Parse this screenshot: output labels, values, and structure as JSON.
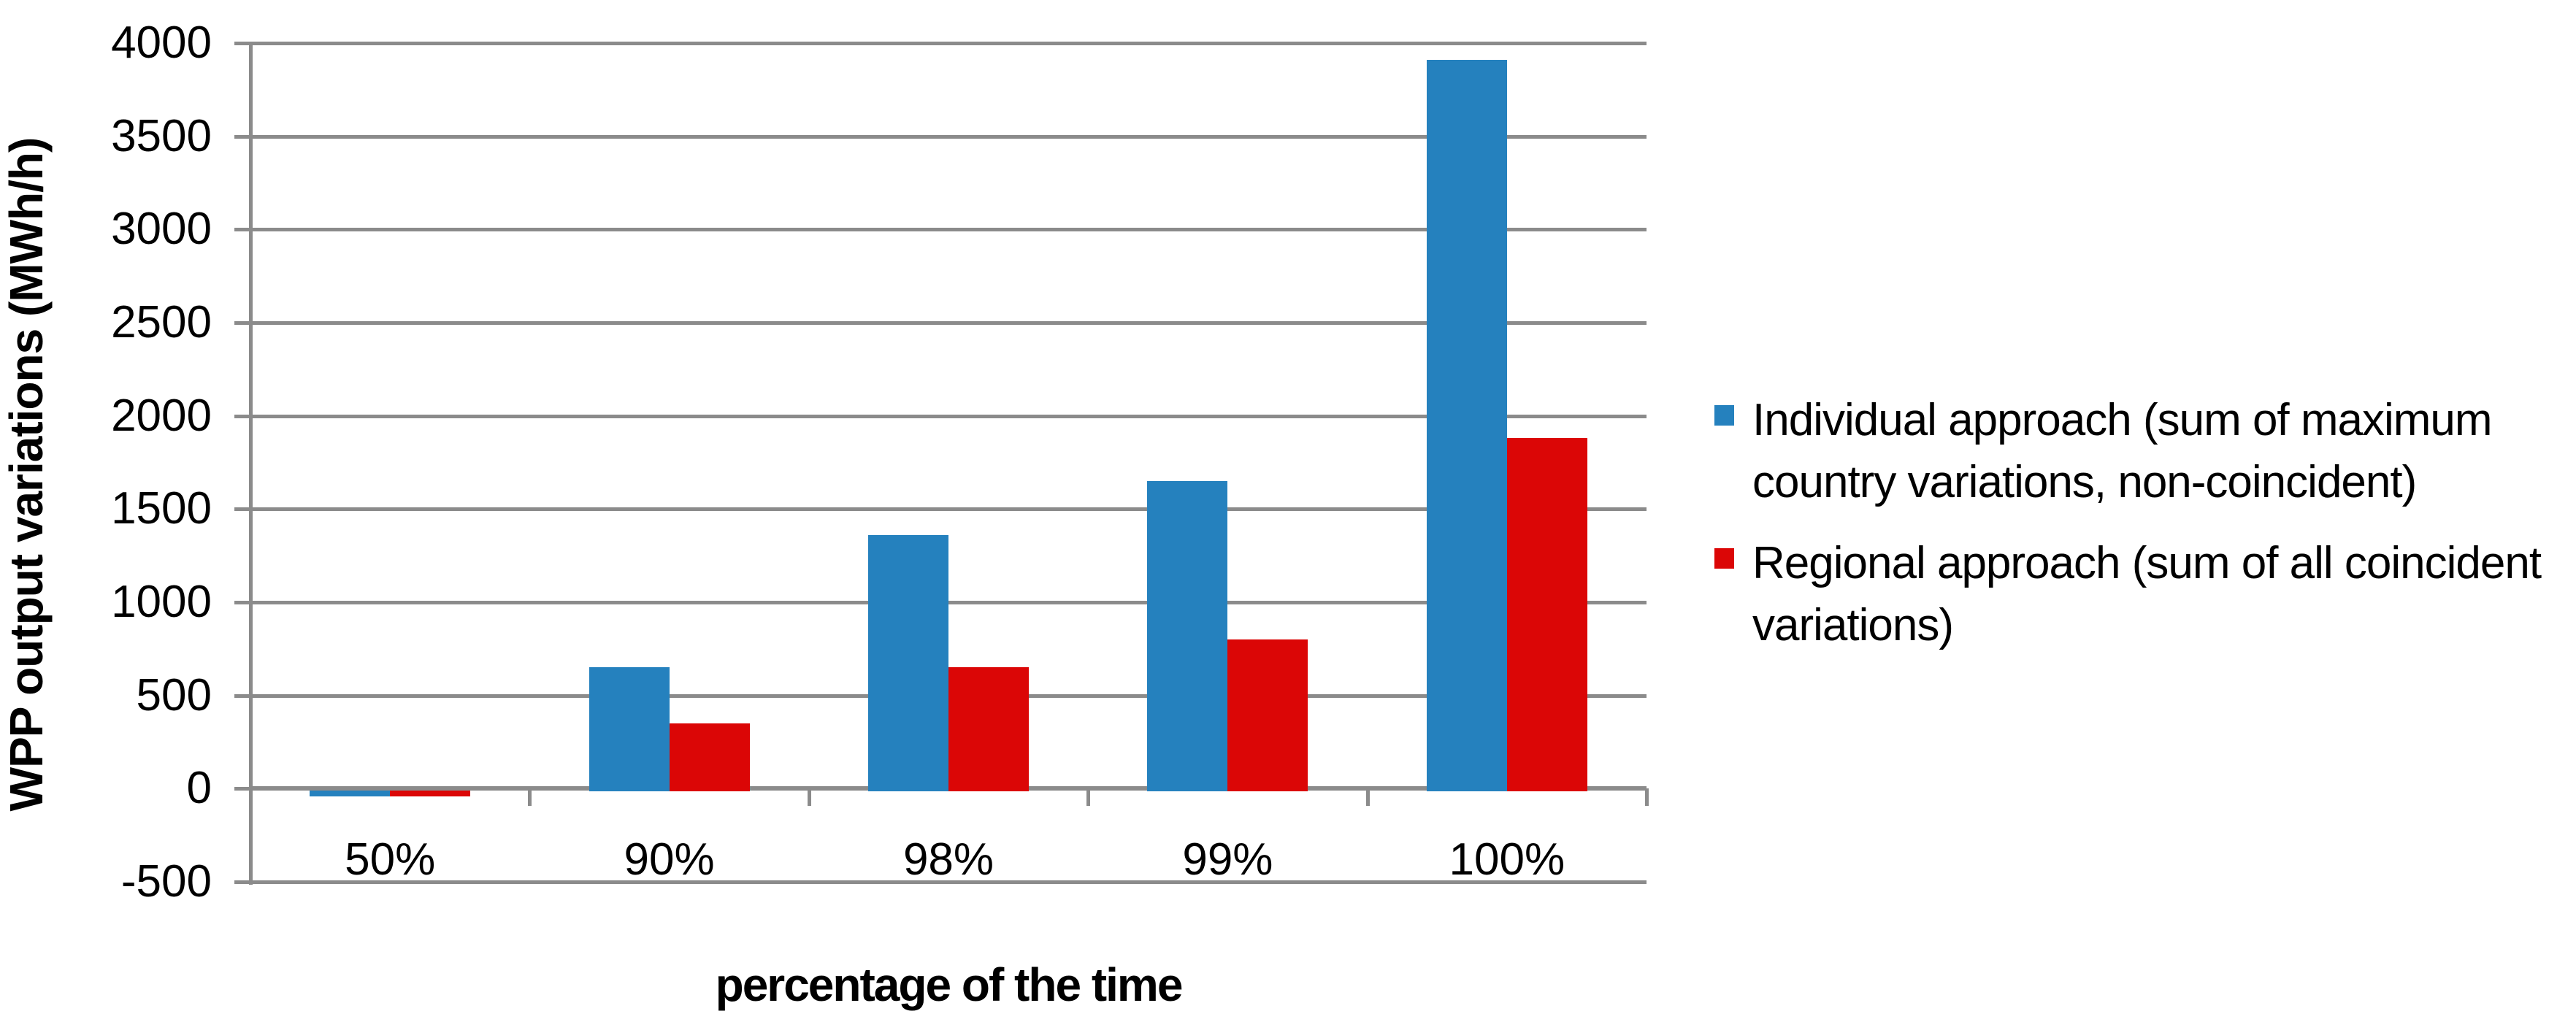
{
  "chart_data": {
    "type": "bar",
    "title": "",
    "categories": [
      "50%",
      "90%",
      "98%",
      "99%",
      "100%"
    ],
    "series": [
      {
        "name": "Individual approach (sum of maximum country variations, non-coincident)",
        "color": "#2581BE",
        "values": [
          -30,
          650,
          1360,
          1650,
          3910
        ]
      },
      {
        "name": "Regional approach (sum of all coincident variations)",
        "color": "#DB0606",
        "values": [
          -30,
          350,
          650,
          800,
          1880
        ]
      }
    ],
    "xlabel": "percentage of the time",
    "ylabel": "WPP output variations (MWh/h)",
    "ylim": [
      -500,
      4000
    ],
    "ystep": 500,
    "yticks": [
      "4000",
      "3500",
      "3000",
      "2500",
      "2000",
      "1500",
      "1000",
      "500",
      "0",
      "-500"
    ],
    "grid": true,
    "legend_position": "right",
    "grid_color": "#8B8B8B",
    "background": "#FFFFFF",
    "text_color": "#000000"
  }
}
